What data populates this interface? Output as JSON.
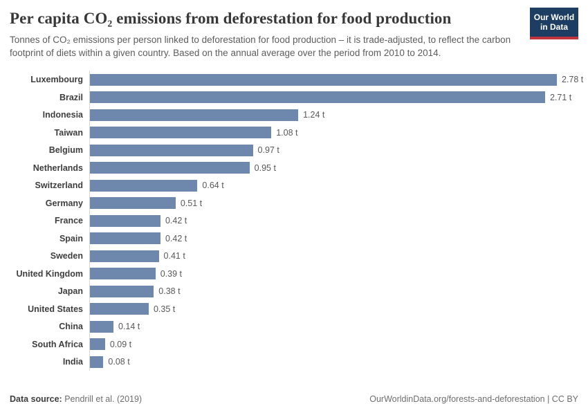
{
  "header": {
    "title": "Per capita CO₂ emissions from deforestation for food production",
    "subtitle": "Tonnes of CO₂ emissions per person linked to deforestation for food production – it is trade-adjusted, to reflect the carbon footprint of diets within a given country. Based on the annual average over the period from 2010 to 2014.",
    "logo": {
      "line1": "Our World",
      "line2": "in Data"
    }
  },
  "chart_data": {
    "type": "bar",
    "orientation": "horizontal",
    "title": "Per capita CO₂ emissions from deforestation for food production",
    "unit": "t",
    "xlim": [
      0,
      2.78
    ],
    "grid": false,
    "legend": "none",
    "categories": [
      "Luxembourg",
      "Brazil",
      "Indonesia",
      "Taiwan",
      "Belgium",
      "Netherlands",
      "Switzerland",
      "Germany",
      "France",
      "Spain",
      "Sweden",
      "United Kingdom",
      "Japan",
      "United States",
      "China",
      "South Africa",
      "India"
    ],
    "values": [
      2.78,
      2.71,
      1.24,
      1.08,
      0.97,
      0.95,
      0.64,
      0.51,
      0.42,
      0.42,
      0.41,
      0.39,
      0.38,
      0.35,
      0.14,
      0.09,
      0.08
    ],
    "value_labels": [
      "2.78 t",
      "2.71 t",
      "1.24 t",
      "1.08 t",
      "0.97 t",
      "0.95 t",
      "0.64 t",
      "0.51 t",
      "0.42 t",
      "0.42 t",
      "0.41 t",
      "0.39 t",
      "0.38 t",
      "0.35 t",
      "0.14 t",
      "0.09 t",
      "0.08 t"
    ]
  },
  "footer": {
    "source_label": "Data source:",
    "source_value": "Pendrill et al. (2019)",
    "credit": "OurWorldinData.org/forests-and-deforestation | CC BY"
  },
  "colors": {
    "bar": "#6e87ac",
    "logo_bg": "#1d3d63",
    "logo_stripe": "#c2333c",
    "axis_line": "#d9d9d9"
  }
}
